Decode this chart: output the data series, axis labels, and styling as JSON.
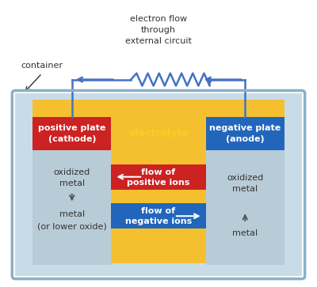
{
  "bg_color": "#ffffff",
  "wire_color": "#4472c4",
  "container_fill": "#b8d4e8",
  "container_inner_fill": "#f5c030",
  "plate_gray": "#b8ccd8",
  "red_color": "#cc2222",
  "blue_color": "#2266bb",
  "yellow_color": "#f5c030",
  "text_dark": "#333333",
  "text_white": "#ffffff",
  "text_yellow": "#f5d020",
  "pos_plate_line1": "positive plate",
  "pos_plate_line2": "(cathode)",
  "neg_plate_line1": "negative plate",
  "neg_plate_line2": "(anode)",
  "electrolyte_text": "electrolyte",
  "flow_pos_line1": "flow of",
  "flow_pos_line2": "positive ions",
  "flow_neg_line1": "flow of",
  "flow_neg_line2": "negative ions",
  "left_text1": "oxidized",
  "left_text2": "metal",
  "left_text3": "metal",
  "left_text4": "(or lower oxide)",
  "right_text1": "oxidized",
  "right_text2": "metal",
  "right_text3": "metal",
  "container_label": "container",
  "ext_label": "electron flow\nthrough\nexternal circuit"
}
